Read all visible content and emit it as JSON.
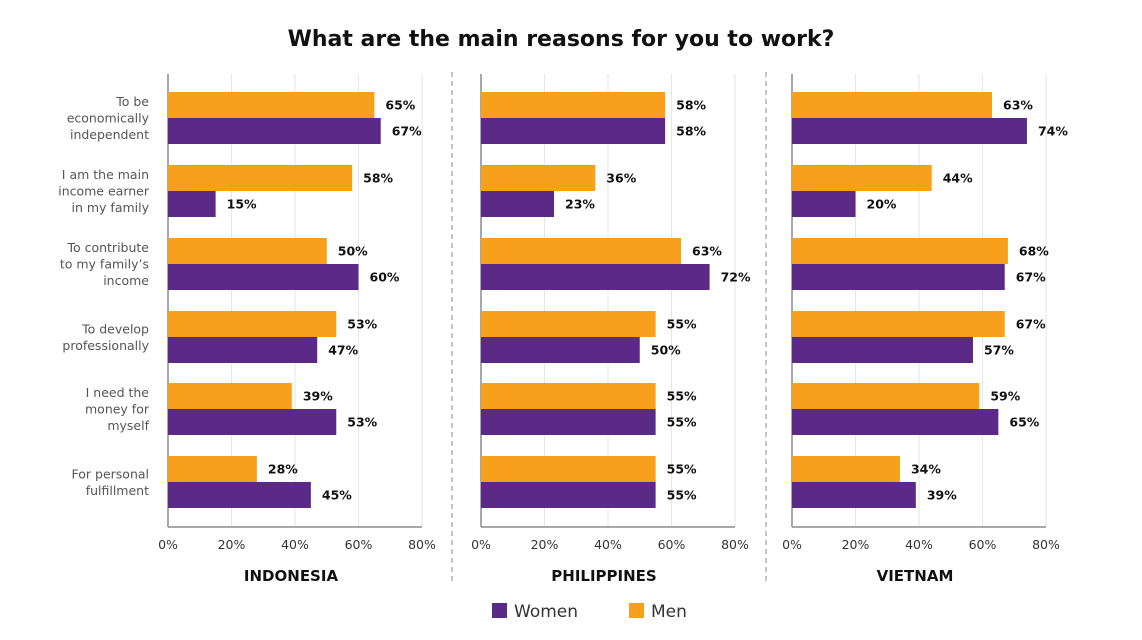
{
  "chart_data": {
    "type": "bar",
    "orientation": "horizontal",
    "title": "What are the main reasons for you to work?",
    "categories": [
      [
        "To be",
        "economically",
        "independent"
      ],
      [
        "I am the main",
        "income earner",
        "in my family"
      ],
      [
        "To contribute",
        "to my family’s",
        "income"
      ],
      [
        "To develop",
        "professionally"
      ],
      [
        "I need the",
        "money for",
        "myself"
      ],
      [
        "For personal",
        "fulfillment"
      ]
    ],
    "xlim": [
      0,
      80
    ],
    "xticks": [
      "0%",
      "20%",
      "40%",
      "60%",
      "80%"
    ],
    "value_suffix": "%",
    "grid": true,
    "legend_position": "bottom",
    "colors": {
      "Women": "#5b2a86",
      "Men": "#f8a01c"
    },
    "legend": [
      {
        "name": "Women",
        "color": "#5b2a86"
      },
      {
        "name": "Men",
        "color": "#f8a01c"
      }
    ],
    "panels": [
      {
        "label": "INDONESIA",
        "series": [
          {
            "name": "Men",
            "values": [
              65,
              58,
              50,
              53,
              39,
              28
            ]
          },
          {
            "name": "Women",
            "values": [
              67,
              15,
              60,
              47,
              53,
              45
            ]
          }
        ]
      },
      {
        "label": "PHILIPPINES",
        "series": [
          {
            "name": "Men",
            "values": [
              58,
              36,
              63,
              55,
              55,
              55
            ]
          },
          {
            "name": "Women",
            "values": [
              58,
              23,
              72,
              50,
              55,
              55
            ]
          }
        ]
      },
      {
        "label": "VIETNAM",
        "series": [
          {
            "name": "Men",
            "values": [
              63,
              44,
              68,
              67,
              59,
              34
            ]
          },
          {
            "name": "Women",
            "values": [
              74,
              20,
              67,
              57,
              65,
              39
            ]
          }
        ]
      }
    ]
  }
}
